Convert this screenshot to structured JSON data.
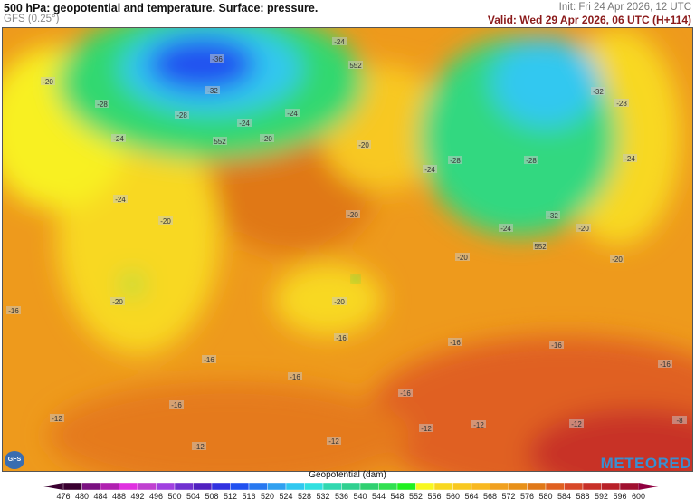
{
  "header": {
    "title": "500 hPa: geopotential and temperature. Surface: pressure.",
    "model": "GFS (0.25°)",
    "init": "Init: Fri 24 Apr 2026, 12 UTC",
    "valid": "Valid: Wed 29 Apr 2026, 06 UTC (H+114)"
  },
  "map": {
    "contour_labels": [
      "-36",
      "-32",
      "-28",
      "-24",
      "-24",
      "-20",
      "-24",
      "-28",
      "-24",
      "-20",
      "-24",
      "-20",
      "-20",
      "-20",
      "-24",
      "-28",
      "-32",
      "-28",
      "-32",
      "-28",
      "-24",
      "-20",
      "-24",
      "-20",
      "-20",
      "-20",
      "-16",
      "-16",
      "-16",
      "-16",
      "-16",
      "-16",
      "-16",
      "-16",
      "-12",
      "-12",
      "-12",
      "-12",
      "-12",
      "-12",
      "-8",
      "552",
      "552",
      "552",
      "-16",
      "-20"
    ]
  },
  "colorbar": {
    "title": "Geopotential (dam)",
    "ticks": [
      476,
      480,
      484,
      488,
      492,
      496,
      500,
      504,
      508,
      512,
      516,
      520,
      524,
      528,
      532,
      536,
      540,
      544,
      548,
      552,
      556,
      560,
      564,
      568,
      572,
      576,
      580,
      584,
      588,
      592,
      596,
      600
    ],
    "colors": [
      "#3a0030",
      "#7a1080",
      "#b020b0",
      "#e030e0",
      "#c040d0",
      "#a040e0",
      "#7030d0",
      "#5020c0",
      "#3030e0",
      "#2050f0",
      "#2878f0",
      "#30a0f0",
      "#30c8f0",
      "#30e0e0",
      "#30d8b0",
      "#30d090",
      "#30d070",
      "#30e050",
      "#20f020",
      "#f8f820",
      "#f8d820",
      "#f8c820",
      "#f8b820",
      "#f0a020",
      "#e89018",
      "#e07818",
      "#e06020",
      "#d84828",
      "#c83028",
      "#b82028",
      "#a01030",
      "#900040"
    ]
  },
  "logos": {
    "left": "GFS",
    "right": "METEORED"
  }
}
